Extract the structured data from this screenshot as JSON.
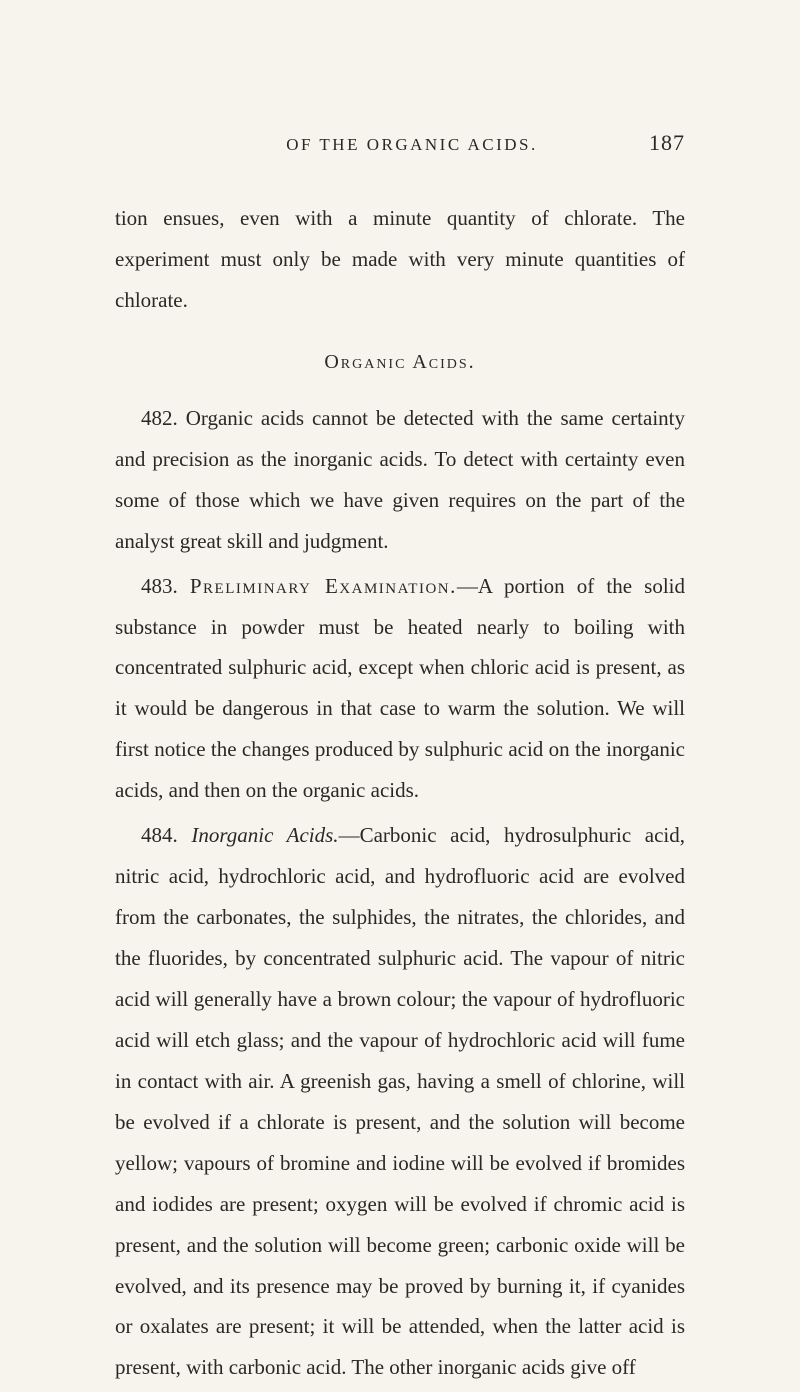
{
  "runningHead": {
    "title": "OF THE ORGANIC ACIDS.",
    "pageNumber": "187"
  },
  "paragraphs": {
    "p1": "tion ensues, even with a minute quantity of chlorate. The experiment must only be made with very minute quantities of chlorate.",
    "sectionHead": "Organic Acids.",
    "p2": "482. Organic acids cannot be detected with the same certainty and precision as the inorganic acids. To detect with certainty even some of those which we have given requires on the part of the analyst great skill and judgment.",
    "p3_lead": "483. ",
    "p3_sc": "Preliminary Examination.",
    "p3_rest": "—A portion of the solid substance in powder must be heated nearly to boiling with concentrated sulphuric acid, except when chloric acid is present, as it would be dangerous in that case to warm the solution. We will first notice the changes produced by sulphuric acid on the inorganic acids, and then on the organic acids.",
    "p4_lead": "484. ",
    "p4_it": "Inorganic Acids.",
    "p4_rest": "—Carbonic acid, hydrosulphuric acid, nitric acid, hydrochloric acid, and hydrofluoric acid are evolved from the carbonates, the sulphides, the nitrates, the chlorides, and the fluorides, by concentrated sulphuric acid. The vapour of nitric acid will generally have a brown colour; the vapour of hydrofluoric acid will etch glass; and the vapour of hydrochloric acid will fume in contact with air. A greenish gas, having a smell of chlorine, will be evolved if a chlorate is present, and the solution will become yellow; vapours of bromine and iodine will be evolved if bromides and iodides are present; oxygen will be evolved if chromic acid is present, and the solution will become green; carbonic oxide will be evolved, and its presence may be proved by burning it, if cyanides or oxalates are present; it will be attended, when the latter acid is present, with carbonic acid. The other inorganic acids give off"
  }
}
